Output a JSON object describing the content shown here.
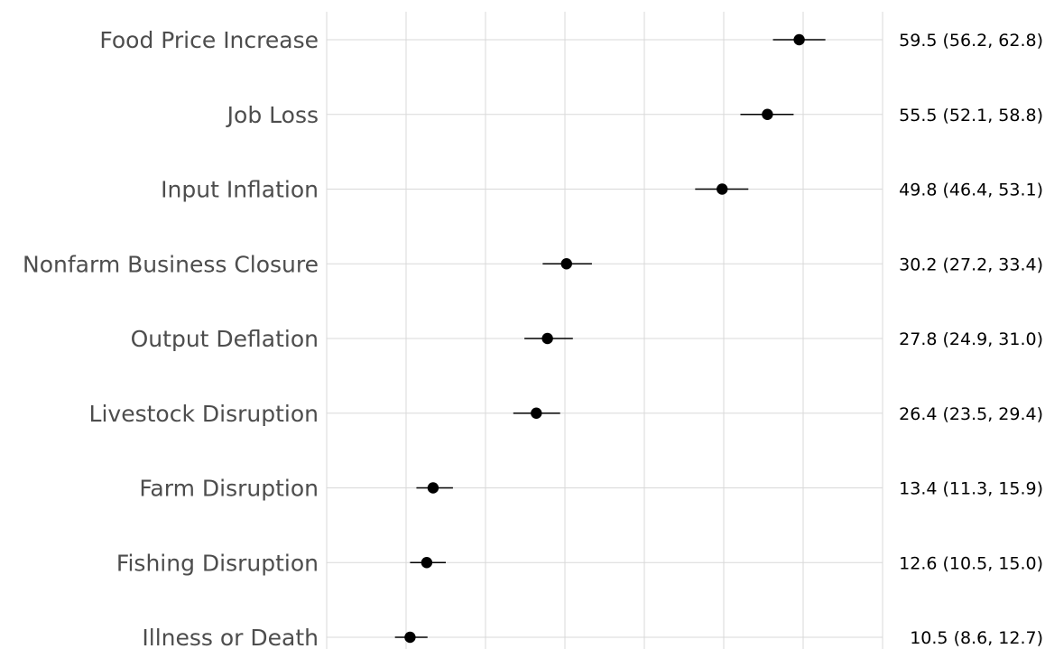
{
  "chart_data": {
    "type": "scatter",
    "title": "",
    "xlabel": "",
    "ylabel": "",
    "xlim": [
      0,
      70
    ],
    "grid": true,
    "x_gridlines": [
      0,
      10,
      20,
      30,
      40,
      50,
      60,
      70
    ],
    "point_color": "#000000",
    "label_color": "#4d4d4d",
    "gridline_color": "#d9d9d9",
    "points": [
      {
        "category": "Food Price Increase",
        "estimate": 59.5,
        "lower": 56.2,
        "upper": 62.8,
        "label": "59.5 (56.2, 62.8)"
      },
      {
        "category": "Job Loss",
        "estimate": 55.5,
        "lower": 52.1,
        "upper": 58.8,
        "label": "55.5 (52.1, 58.8)"
      },
      {
        "category": "Input Inflation",
        "estimate": 49.8,
        "lower": 46.4,
        "upper": 53.1,
        "label": "49.8 (46.4, 53.1)"
      },
      {
        "category": "Nonfarm Business Closure",
        "estimate": 30.2,
        "lower": 27.2,
        "upper": 33.4,
        "label": "30.2 (27.2, 33.4)"
      },
      {
        "category": "Output Deflation",
        "estimate": 27.8,
        "lower": 24.9,
        "upper": 31.0,
        "label": "27.8 (24.9, 31.0)"
      },
      {
        "category": "Livestock Disruption",
        "estimate": 26.4,
        "lower": 23.5,
        "upper": 29.4,
        "label": "26.4 (23.5, 29.4)"
      },
      {
        "category": "Farm Disruption",
        "estimate": 13.4,
        "lower": 11.3,
        "upper": 15.9,
        "label": "13.4 (11.3, 15.9)"
      },
      {
        "category": "Fishing Disruption",
        "estimate": 12.6,
        "lower": 10.5,
        "upper": 15.0,
        "label": "12.6 (10.5, 15.0)"
      },
      {
        "category": "Illness or Death",
        "estimate": 10.5,
        "lower": 8.6,
        "upper": 12.7,
        "label": "10.5 (8.6, 12.7)"
      }
    ]
  }
}
